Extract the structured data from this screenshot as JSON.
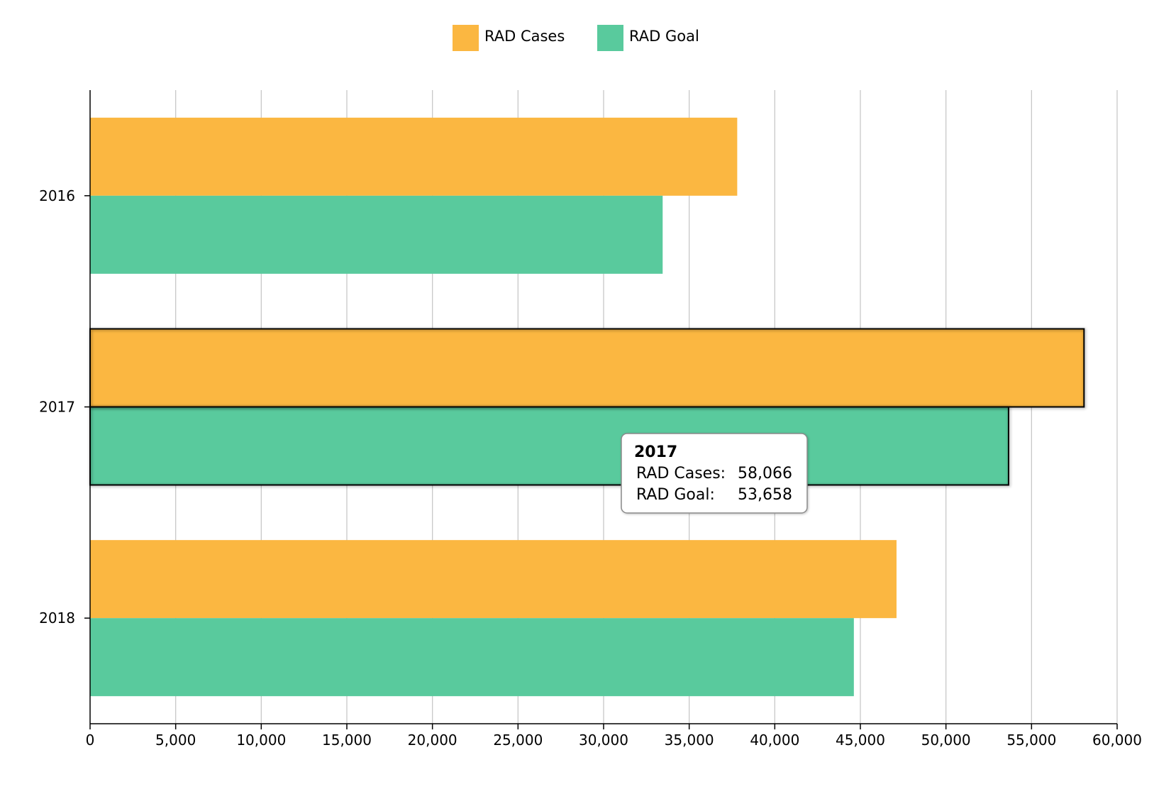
{
  "chart_data": {
    "type": "bar",
    "orientation": "horizontal",
    "categories": [
      "2016",
      "2017",
      "2018"
    ],
    "series": [
      {
        "name": "RAD Cases",
        "color": "#FBB741",
        "values": [
          37806,
          58066,
          47112
        ]
      },
      {
        "name": "RAD Goal",
        "color": "#59CA9D",
        "values": [
          33450,
          53658,
          44620
        ]
      }
    ],
    "xlim": [
      0,
      60000
    ],
    "x_ticks": [
      0,
      5000,
      10000,
      15000,
      20000,
      25000,
      30000,
      35000,
      40000,
      45000,
      50000,
      55000,
      60000
    ],
    "x_tick_labels": [
      "0",
      "5,000",
      "10,000",
      "15,000",
      "20,000",
      "25,000",
      "30,000",
      "35,000",
      "40,000",
      "45,000",
      "50,000",
      "55,000",
      "60,000"
    ],
    "grid": {
      "vertical": true,
      "horizontal": false
    },
    "legend": {
      "position": "top-center"
    },
    "highlighted_category": "2017",
    "tooltip": {
      "title": "2017",
      "rows": [
        {
          "label": "RAD Cases:",
          "value": "58,066"
        },
        {
          "label": "RAD Goal:",
          "value": "53,658"
        }
      ]
    }
  }
}
